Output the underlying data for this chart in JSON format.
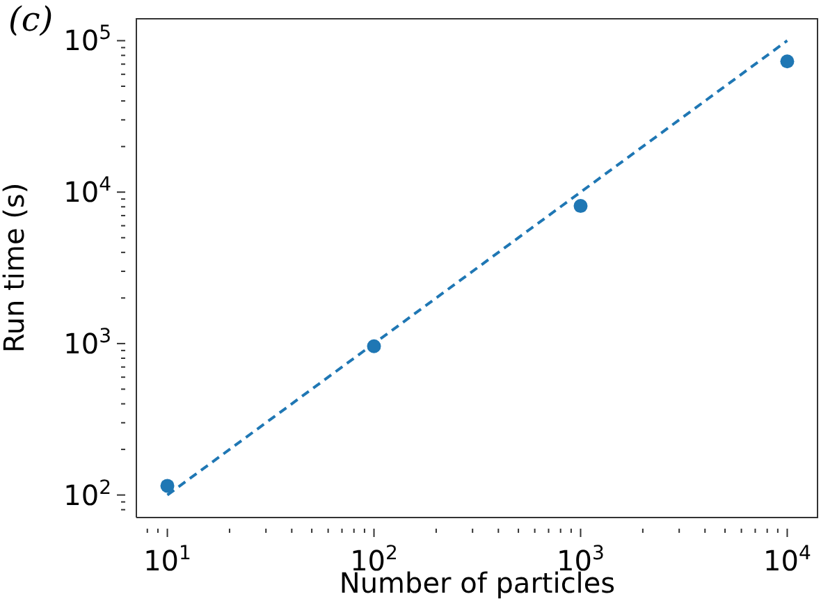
{
  "chart_data": {
    "type": "scatter",
    "title": "(c)",
    "xlabel": "Number of particles",
    "ylabel": "Run time (s)",
    "log": "xy",
    "grid": false,
    "legend": false,
    "xlim": [
      7.08,
      14125
    ],
    "ylim": [
      71,
      141000
    ],
    "xticks": [
      {
        "value": 8,
        "label": null
      },
      {
        "value": 9,
        "label": null
      },
      {
        "value": 10,
        "label": "10$^{1}$"
      },
      {
        "value": 20,
        "label": null
      },
      {
        "value": 30,
        "label": null
      },
      {
        "value": 40,
        "label": null
      },
      {
        "value": 50,
        "label": null
      },
      {
        "value": 60,
        "label": null
      },
      {
        "value": 70,
        "label": null
      },
      {
        "value": 80,
        "label": null
      },
      {
        "value": 90,
        "label": null
      },
      {
        "value": 100,
        "label": "10$^{2}$"
      },
      {
        "value": 200,
        "label": null
      },
      {
        "value": 300,
        "label": null
      },
      {
        "value": 400,
        "label": null
      },
      {
        "value": 500,
        "label": null
      },
      {
        "value": 600,
        "label": null
      },
      {
        "value": 700,
        "label": null
      },
      {
        "value": 800,
        "label": null
      },
      {
        "value": 900,
        "label": null
      },
      {
        "value": 1000,
        "label": "10$^{3}$"
      },
      {
        "value": 2000,
        "label": null
      },
      {
        "value": 3000,
        "label": null
      },
      {
        "value": 4000,
        "label": null
      },
      {
        "value": 5000,
        "label": null
      },
      {
        "value": 6000,
        "label": null
      },
      {
        "value": 7000,
        "label": null
      },
      {
        "value": 8000,
        "label": null
      },
      {
        "value": 9000,
        "label": null
      },
      {
        "value": 10000,
        "label": "10$^{4}$"
      }
    ],
    "yticks": [
      {
        "value": 80,
        "label": null
      },
      {
        "value": 90,
        "label": null
      },
      {
        "value": 100,
        "label": "10$^{2}$"
      },
      {
        "value": 200,
        "label": null
      },
      {
        "value": 300,
        "label": null
      },
      {
        "value": 400,
        "label": null
      },
      {
        "value": 500,
        "label": null
      },
      {
        "value": 600,
        "label": null
      },
      {
        "value": 700,
        "label": null
      },
      {
        "value": 800,
        "label": null
      },
      {
        "value": 900,
        "label": null
      },
      {
        "value": 1000,
        "label": "10$^{3}$"
      },
      {
        "value": 2000,
        "label": null
      },
      {
        "value": 3000,
        "label": null
      },
      {
        "value": 4000,
        "label": null
      },
      {
        "value": 5000,
        "label": null
      },
      {
        "value": 6000,
        "label": null
      },
      {
        "value": 7000,
        "label": null
      },
      {
        "value": 8000,
        "label": null
      },
      {
        "value": 9000,
        "label": null
      },
      {
        "value": 10000,
        "label": "10$^{4}$"
      },
      {
        "value": 20000,
        "label": null
      },
      {
        "value": 30000,
        "label": null
      },
      {
        "value": 40000,
        "label": null
      },
      {
        "value": 50000,
        "label": null
      },
      {
        "value": 60000,
        "label": null
      },
      {
        "value": 70000,
        "label": null
      },
      {
        "value": 80000,
        "label": null
      },
      {
        "value": 90000,
        "label": null
      },
      {
        "value": 100000,
        "label": "10$^{5}$"
      }
    ],
    "series": [
      {
        "color": "#1f77b4",
        "marker": "circle",
        "x": [
          10,
          100,
          1000,
          10000
        ],
        "values": [
          115,
          960,
          8100,
          73000
        ]
      },
      {
        "type": "line",
        "color": "#1f77b4",
        "line_style": "dashed",
        "marker": "none",
        "x": [
          10,
          10000
        ],
        "values": [
          100,
          100000
        ]
      }
    ]
  }
}
